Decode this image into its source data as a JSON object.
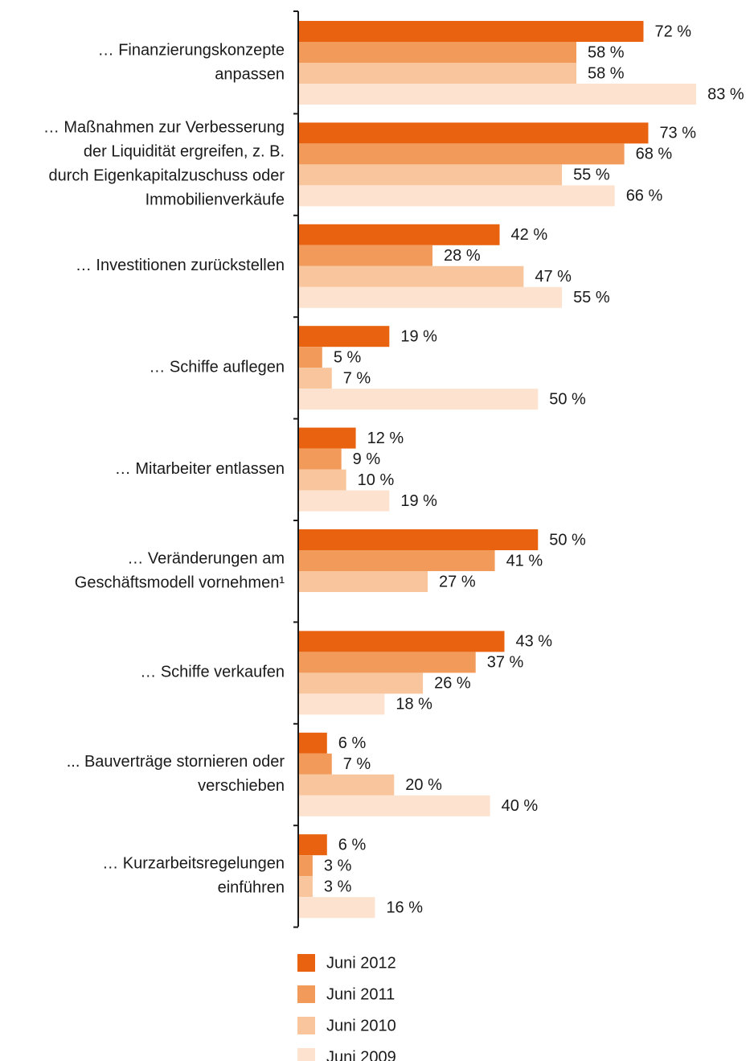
{
  "chart_data": {
    "type": "bar",
    "orientation": "horizontal",
    "categories": [
      [
        "… Finanzierungskonzepte",
        "anpassen"
      ],
      [
        "… Maßnahmen zur Verbesserung",
        "der Liquidität ergreifen, z. B.",
        "durch Eigenkapitalzuschuss oder",
        "Immobilienverkäufe"
      ],
      [
        "… Investitionen zurückstellen"
      ],
      [
        "… Schiffe auflegen"
      ],
      [
        "… Mitarbeiter entlassen"
      ],
      [
        "… Veränderungen am",
        "Geschäftsmodell vornehmen¹"
      ],
      [
        "… Schiffe verkaufen"
      ],
      [
        "... Bauverträge stornieren oder",
        "verschieben"
      ],
      [
        "… Kurzarbeitsregelungen",
        "einführen"
      ]
    ],
    "series": [
      {
        "name": "Juni 2012",
        "color": "#e8620f",
        "values": [
          72,
          73,
          42,
          19,
          12,
          50,
          43,
          6,
          6
        ],
        "value_labels": [
          "72 %",
          "73 %",
          "42 %",
          "19 %",
          "12 %",
          "50 %",
          "43 %",
          "6 %",
          "6 %"
        ]
      },
      {
        "name": "Juni 2011",
        "color": "#f19a5a",
        "values": [
          58,
          68,
          28,
          5,
          9,
          41,
          37,
          7,
          3
        ],
        "value_labels": [
          "58 %",
          "68 %",
          "28 %",
          "5 %",
          "9 %",
          "41 %",
          "37 %",
          "7 %",
          "3 %"
        ]
      },
      {
        "name": "Juni 2010",
        "color": "#f8c59c",
        "values": [
          58,
          55,
          47,
          7,
          10,
          27,
          26,
          20,
          3
        ],
        "value_labels": [
          "58 %",
          "55 %",
          "47 %",
          "7 %",
          "10 %",
          "27 %",
          "26 %",
          "20 %",
          "3 %"
        ]
      },
      {
        "name": "Juni 2009",
        "color": "#fde3cf",
        "values": [
          83,
          66,
          55,
          50,
          19,
          null,
          18,
          40,
          16
        ],
        "value_labels": [
          "83 %",
          "66 %",
          "55 %",
          "50 %",
          "19 %",
          null,
          "18 %",
          "40 %",
          "16 %"
        ]
      }
    ]
  }
}
